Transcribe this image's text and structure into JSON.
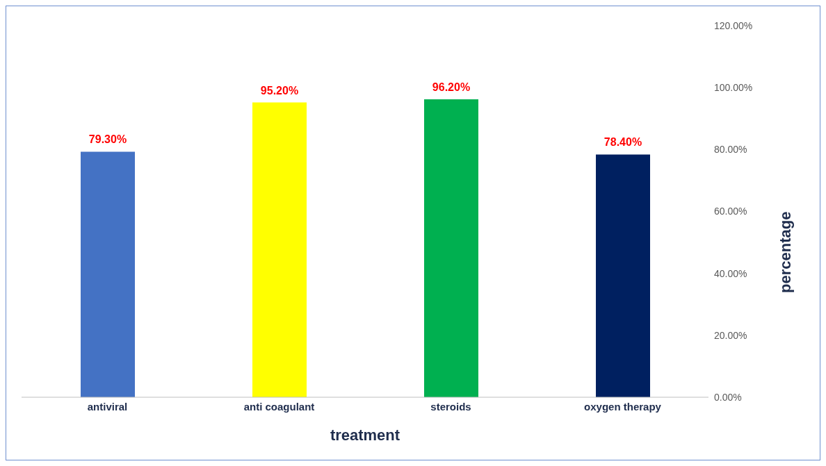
{
  "chart_data": {
    "type": "bar",
    "xlabel": "treatment",
    "ylabel": "percentage",
    "categories": [
      "antiviral",
      "anti coagulant",
      "steroids",
      "oxygen therapy"
    ],
    "values": [
      79.3,
      95.2,
      96.2,
      78.4
    ],
    "colors": [
      "#4472c4",
      "#ffff00",
      "#00b050",
      "#002060"
    ],
    "value_labels": [
      "79.30%",
      "95.20%",
      "96.20%",
      "78.40%"
    ],
    "ylim": [
      0,
      120
    ],
    "yticks": [
      {
        "value": 0,
        "label": "0.00%"
      },
      {
        "value": 20,
        "label": "20.00%"
      },
      {
        "value": 40,
        "label": "40.00%"
      },
      {
        "value": 60,
        "label": "60.00%"
      },
      {
        "value": 80,
        "label": "80.00%"
      },
      {
        "value": 100,
        "label": "100.00%"
      },
      {
        "value": 120,
        "label": "120.00%"
      }
    ],
    "grid": false,
    "legend": false
  }
}
